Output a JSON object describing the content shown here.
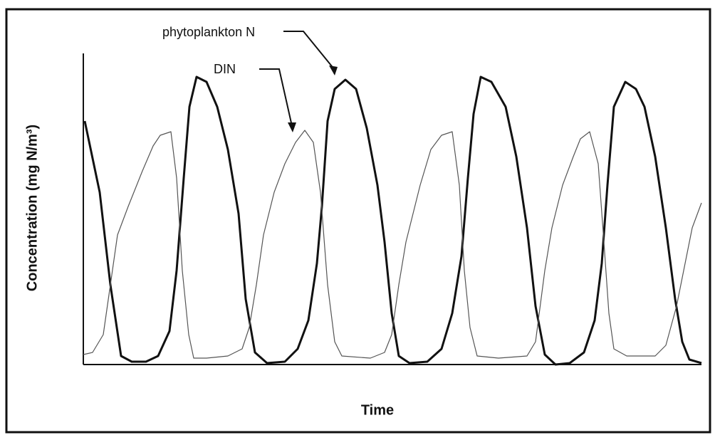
{
  "chart_data": {
    "type": "line",
    "xlabel": "Time",
    "ylabel": "Concentration (mg N/m³)",
    "annotations": [
      "phytoplankton N",
      "DIN"
    ],
    "xlim": [
      0,
      868
    ],
    "ylim": [
      0,
      437
    ],
    "series": [
      {
        "name": "phytoplankton N",
        "color": "#111111",
        "x": [
          2,
          23,
          38,
          53,
          68,
          88,
          105,
          121,
          131,
          141,
          149,
          159,
          173,
          188,
          203,
          218,
          228,
          241,
          258,
          283,
          301,
          316,
          328,
          335,
          343,
          353,
          368,
          383,
          398,
          413,
          423,
          433,
          443,
          458,
          483,
          503,
          518,
          531,
          540,
          548,
          558,
          573,
          593,
          608,
          623,
          635,
          648,
          663,
          683,
          703,
          718,
          728,
          736,
          745,
          761,
          776,
          788,
          803,
          818,
          831,
          841,
          851,
          868
        ],
        "values": [
          342,
          242,
          112,
          12,
          4,
          4,
          12,
          47,
          132,
          262,
          362,
          404,
          397,
          362,
          302,
          212,
          92,
          17,
          2,
          4,
          22,
          62,
          142,
          222,
          342,
          387,
          400,
          387,
          332,
          252,
          172,
          72,
          12,
          2,
          4,
          22,
          72,
          152,
          262,
          352,
          404,
          397,
          362,
          292,
          192,
          82,
          14,
          0,
          2,
          17,
          62,
          142,
          252,
          362,
          397,
          387,
          362,
          292,
          192,
          92,
          32,
          7,
          2
        ]
      },
      {
        "name": "DIN",
        "color": "#555555",
        "x": [
          0,
          13,
          28,
          38,
          48,
          63,
          83,
          98,
          108,
          123,
          131,
          139,
          148,
          155,
          173,
          203,
          223,
          233,
          243,
          253,
          268,
          283,
          298,
          311,
          323,
          333,
          343,
          353,
          363,
          403,
          423,
          433,
          443,
          453,
          473,
          488,
          503,
          518,
          528,
          535,
          543,
          553,
          583,
          623,
          635,
          648,
          658,
          673,
          688,
          698,
          711,
          723,
          731,
          738,
          745,
          763,
          803,
          818,
          833,
          843,
          855,
          868
        ],
        "values": [
          14,
          17,
          42,
          112,
          182,
          222,
          272,
          307,
          322,
          327,
          262,
          132,
          42,
          9,
          9,
          12,
          22,
          52,
          112,
          182,
          242,
          282,
          312,
          329,
          312,
          242,
          112,
          32,
          12,
          9,
          17,
          42,
          112,
          172,
          252,
          302,
          322,
          327,
          252,
          132,
          52,
          12,
          9,
          12,
          32,
          132,
          192,
          252,
          292,
          317,
          327,
          282,
          172,
          72,
          22,
          12,
          12,
          27,
          82,
          132,
          192,
          227
        ]
      }
    ]
  }
}
